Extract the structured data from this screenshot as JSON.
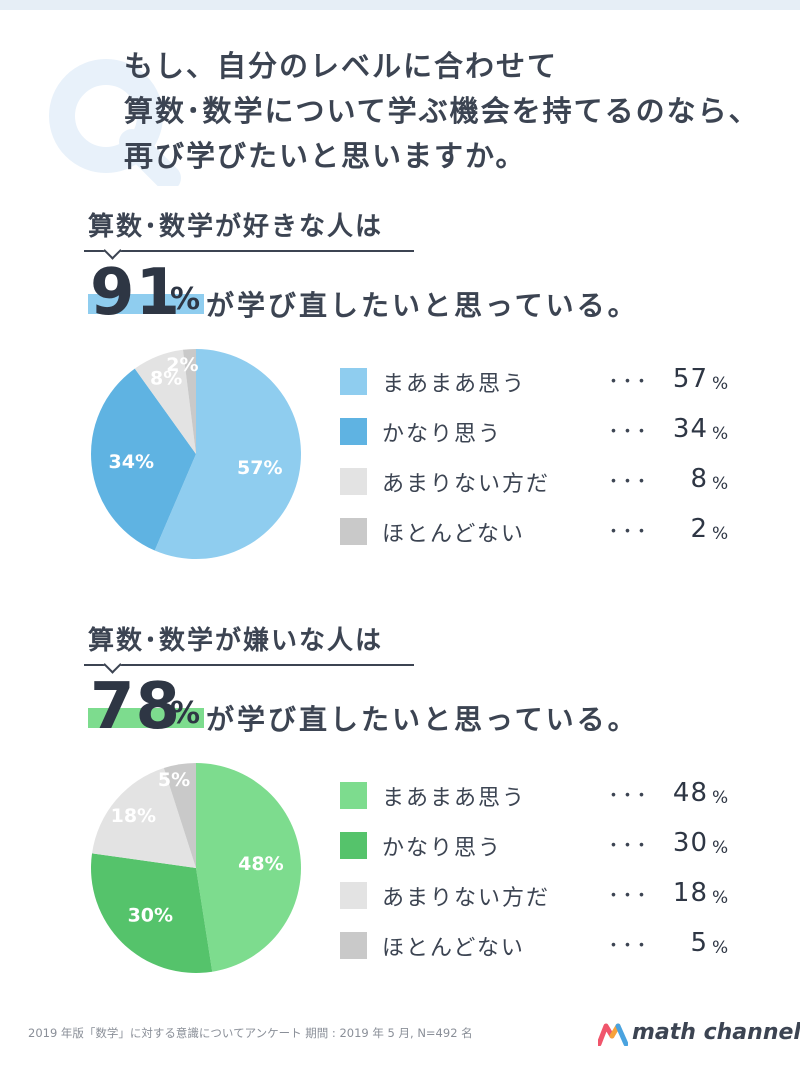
{
  "question": {
    "lines": [
      "もし、自分のレベルに合わせて",
      "算数･数学について学ぶ機会を持てるのなら、",
      "再び学びたいと思いますか。"
    ]
  },
  "colors": {
    "text": "#3c4452",
    "q_mark": "#e8f1fa"
  },
  "sections": [
    {
      "label": "算数･数学が好きな人は",
      "big_value": "91",
      "big_unit": "%",
      "big_text": "が学び直したいと思っている。",
      "highlight_color": "#8fcdef",
      "chart_data": {
        "type": "pie",
        "start_angle_deg": 0,
        "direction": "clockwise",
        "slices": [
          {
            "label": "まあまあ思う",
            "value": 57,
            "slice_label": "57%",
            "color": "#8fcdef"
          },
          {
            "label": "かなり思う",
            "value": 34,
            "slice_label": "34%",
            "color": "#5fb3e2"
          },
          {
            "label": "あまりない方だ",
            "value": 8,
            "slice_label": "8%",
            "color": "#e3e3e3"
          },
          {
            "label": "ほとんどない",
            "value": 2,
            "slice_label": "2%",
            "color": "#c9c9c9"
          }
        ]
      },
      "legend": [
        {
          "label": "まあまあ思う",
          "dots": "･･･",
          "num": "57",
          "pct": "%"
        },
        {
          "label": "かなり思う",
          "dots": "･･･",
          "num": "34",
          "pct": "%"
        },
        {
          "label": "あまりない方だ",
          "dots": "･･･",
          "num": "8",
          "pct": "%"
        },
        {
          "label": "ほとんどない",
          "dots": "･･･",
          "num": "2",
          "pct": "%"
        }
      ]
    },
    {
      "label": "算数･数学が嫌いな人は",
      "big_value": "78",
      "big_unit": "%",
      "big_text": "が学び直したいと思っている。",
      "highlight_color": "#7ddc8e",
      "chart_data": {
        "type": "pie",
        "start_angle_deg": 0,
        "direction": "clockwise",
        "slices": [
          {
            "label": "まあまあ思う",
            "value": 48,
            "slice_label": "48%",
            "color": "#7ddc8e"
          },
          {
            "label": "かなり思う",
            "value": 30,
            "slice_label": "30%",
            "color": "#55c36b"
          },
          {
            "label": "あまりない方だ",
            "value": 18,
            "slice_label": "18%",
            "color": "#e3e3e3"
          },
          {
            "label": "ほとんどない",
            "value": 5,
            "slice_label": "5%",
            "color": "#c9c9c9"
          }
        ]
      },
      "legend": [
        {
          "label": "まあまあ思う",
          "dots": "･･･",
          "num": "48",
          "pct": "%"
        },
        {
          "label": "かなり思う",
          "dots": "･･･",
          "num": "30",
          "pct": "%"
        },
        {
          "label": "あまりない方だ",
          "dots": "･･･",
          "num": "18",
          "pct": "%"
        },
        {
          "label": "ほとんどない",
          "dots": "･･･",
          "num": "5",
          "pct": "%"
        }
      ]
    }
  ],
  "footnote": "2019 年版「数学」に対する意識についてアンケート 期間 : 2019 年 5 月, N=492 名",
  "logo": {
    "text": "math channel",
    "colors": [
      "#f0556b",
      "#f7a23b",
      "#4aa3df"
    ]
  }
}
